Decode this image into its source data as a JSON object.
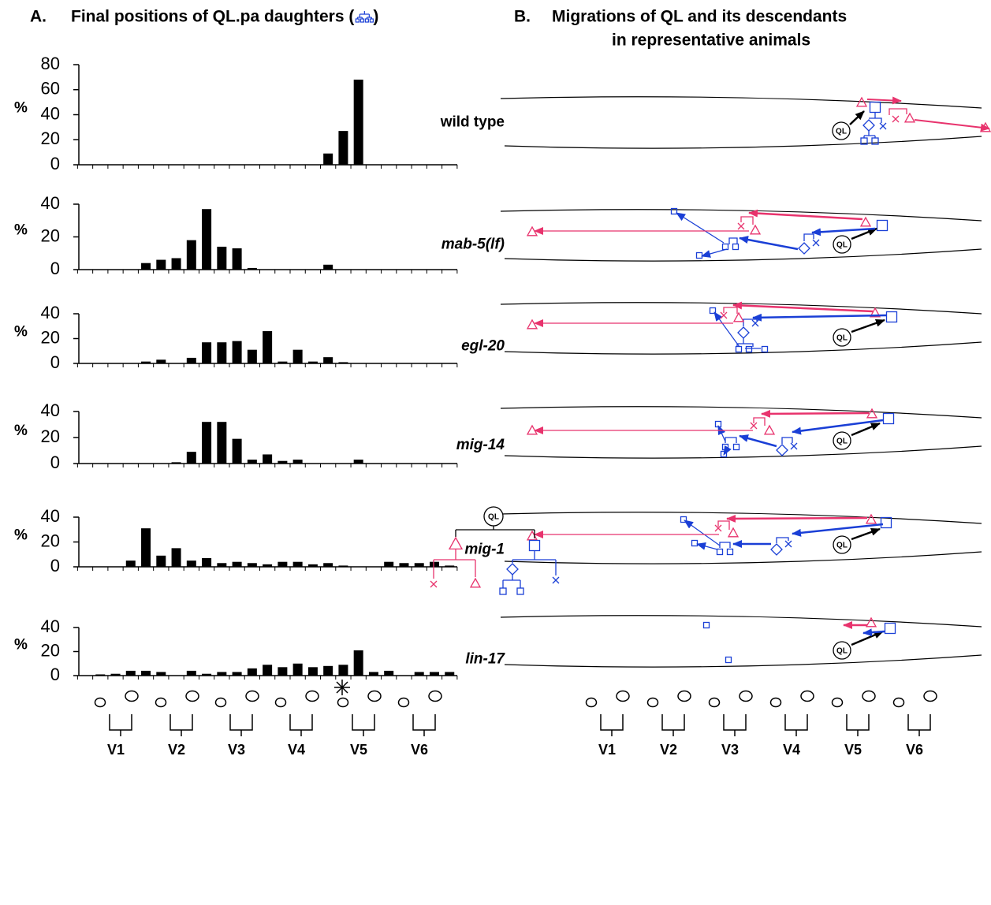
{
  "panel_a": {
    "label": "A.",
    "title_before": "Final positions of QL.pa daughters (",
    "title_after": ")"
  },
  "panel_b": {
    "label": "B.",
    "title_lines": [
      "Migrations of QL and its descendants",
      "in representative animals"
    ]
  },
  "ql_label": "QL",
  "seam_labels": [
    "V1",
    "V2",
    "V3",
    "V4",
    "V5",
    "V6"
  ],
  "chart_data": [
    {
      "type": "bar",
      "name": "wild type",
      "y_label": "%",
      "color": "#000000",
      "ylim": [
        0,
        80
      ],
      "yticks": [
        0,
        20,
        40,
        60,
        80
      ],
      "values": [
        0,
        0,
        0,
        0,
        0,
        0,
        0,
        0,
        0,
        0,
        0,
        0,
        0,
        0,
        0,
        0,
        9,
        27,
        68,
        0,
        0,
        0,
        0,
        0,
        0
      ]
    },
    {
      "type": "bar",
      "name": "mab-5(lf)",
      "y_label": "%",
      "color": "#000000",
      "ylim": [
        0,
        40
      ],
      "yticks": [
        0,
        20,
        40
      ],
      "values": [
        0,
        0,
        0,
        0,
        4,
        6,
        7,
        18,
        37,
        14,
        13,
        1,
        0,
        0,
        0,
        0,
        3,
        0,
        0,
        0,
        0,
        0,
        0,
        0,
        0
      ]
    },
    {
      "type": "bar",
      "name": "egl-20",
      "y_label": "%",
      "color": "#000000",
      "ylim": [
        0,
        40
      ],
      "yticks": [
        0,
        20,
        40
      ],
      "values": [
        0,
        0,
        0,
        0,
        1.5,
        3,
        0,
        4.5,
        17,
        17,
        18,
        11,
        26,
        1.5,
        11,
        1.5,
        5,
        1,
        0,
        0,
        0,
        0,
        0,
        0,
        0
      ]
    },
    {
      "type": "bar",
      "name": "mig-14",
      "y_label": "%",
      "color": "#000000",
      "ylim": [
        0,
        40
      ],
      "yticks": [
        0,
        20,
        40
      ],
      "values": [
        0,
        0,
        0,
        0,
        0,
        0,
        1,
        9,
        32,
        32,
        19,
        3,
        7,
        2,
        3,
        0,
        0,
        0,
        3,
        0,
        0,
        0,
        0,
        0,
        0
      ]
    },
    {
      "type": "bar",
      "name": "mig-1",
      "y_label": "%",
      "color": "#000000",
      "ylim": [
        0,
        40
      ],
      "yticks": [
        0,
        20,
        40
      ],
      "values": [
        0,
        0,
        0,
        5,
        31,
        9,
        15,
        5,
        7,
        3,
        4,
        3,
        2,
        4,
        4,
        2,
        3,
        1,
        0,
        0,
        4,
        3,
        3,
        4,
        1
      ]
    },
    {
      "type": "bar",
      "name": "lin-17",
      "y_label": "%",
      "color": "#000000",
      "ylim": [
        0,
        40
      ],
      "yticks": [
        0,
        20,
        40
      ],
      "values": [
        0,
        1,
        1.5,
        4,
        4,
        3,
        0,
        4,
        1.5,
        3,
        3,
        6,
        9,
        7,
        10,
        7,
        8,
        9,
        21,
        3,
        4,
        0,
        3,
        3,
        3
      ]
    }
  ]
}
